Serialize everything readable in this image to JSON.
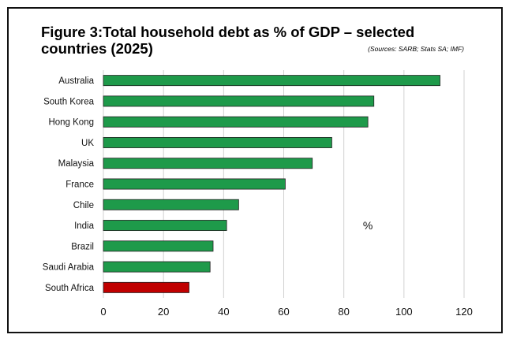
{
  "chart_data": {
    "type": "bar",
    "orientation": "horizontal",
    "title": "Figure 3:Total household debt as % of GDP – selected countries (2025)",
    "subtitle": "(Sources: SARB; Stats SA; IMF)",
    "annotation": "%",
    "categories": [
      "Australia",
      "South Korea",
      "Hong Kong",
      "UK",
      "Malaysia",
      "France",
      "Chile",
      "India",
      "Brazil",
      "Saudi Arabia",
      "South Africa"
    ],
    "values": [
      112,
      90,
      88,
      76,
      69.5,
      60.5,
      45,
      41,
      36.5,
      35.5,
      28.5
    ],
    "colors": [
      "#1e9a4a",
      "#1e9a4a",
      "#1e9a4a",
      "#1e9a4a",
      "#1e9a4a",
      "#1e9a4a",
      "#1e9a4a",
      "#1e9a4a",
      "#1e9a4a",
      "#1e9a4a",
      "#c00000"
    ],
    "xlim": [
      0,
      120
    ],
    "xticks": [
      0,
      20,
      40,
      60,
      80,
      100,
      120
    ],
    "grid": true
  }
}
